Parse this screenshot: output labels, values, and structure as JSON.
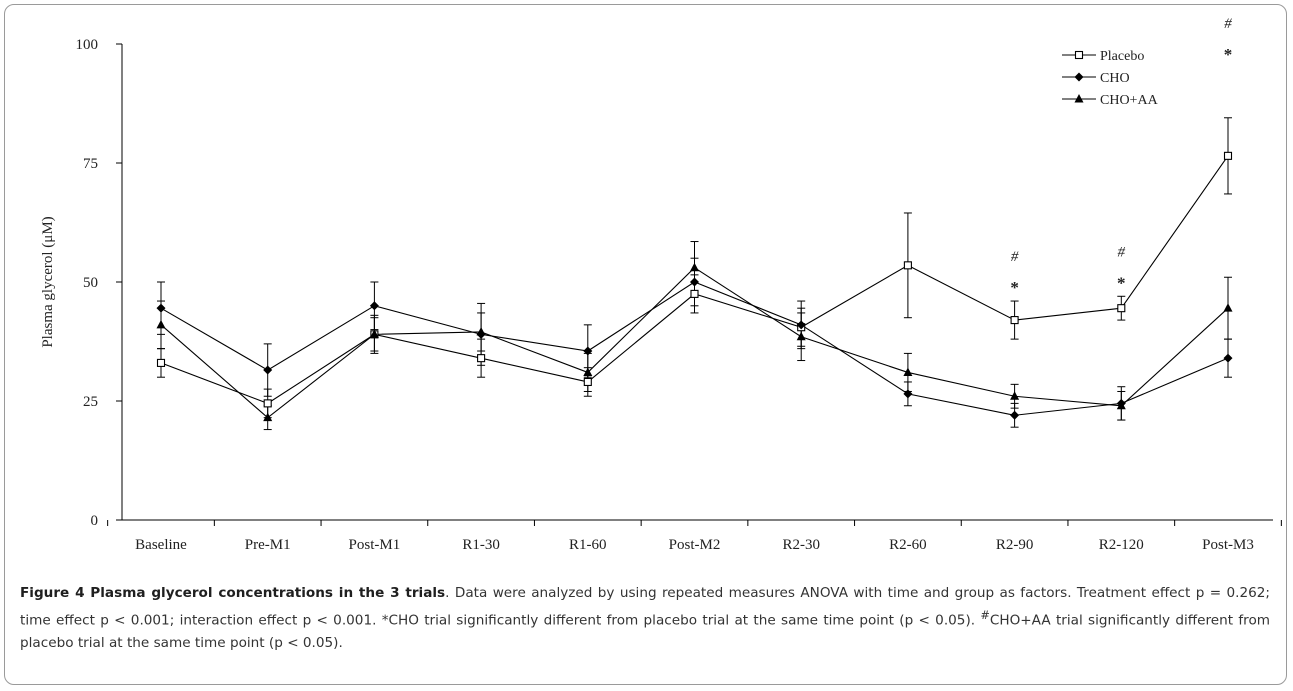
{
  "caption": {
    "title": "Figure 4 Plasma glycerol concentrations in the 3 trials",
    "text1": ". Data were analyzed by using repeated measures ANOVA with time and group as factors. Treatment effect p = 0.262; time effect p < 0.001; interaction effect p < 0.001. *CHO trial significantly different from placebo trial at the same time point (p < 0.05). ",
    "hash": "#",
    "text2": "CHO+AA trial significantly different from placebo trial at the same time point (p < 0.05)."
  },
  "chart_data": {
    "type": "line",
    "ylabel": "Plasma glycerol (μM)",
    "xlabel": "",
    "ylim": [
      0,
      100
    ],
    "yticks": [
      "0",
      "25",
      "50",
      "75",
      "100"
    ],
    "categories": [
      "Baseline",
      "Pre-M1",
      "Post-M1",
      "R1-30",
      "R1-60",
      "Post-M2",
      "R2-30",
      "R2-60",
      "R2-90",
      "R2-120",
      "Post-M3"
    ],
    "series": [
      {
        "name": "Placebo",
        "marker": "open-square",
        "values": [
          33,
          24.5,
          39,
          34,
          29,
          47.5,
          40.5,
          53.5,
          42,
          44.5,
          76.5
        ],
        "errors": [
          3,
          3,
          3.5,
          4,
          3,
          4,
          4,
          11,
          4,
          2.5,
          8
        ]
      },
      {
        "name": "CHO",
        "marker": "filled-diamond",
        "values": [
          44.5,
          31.5,
          45,
          39,
          35.5,
          50,
          41,
          26.5,
          22,
          24.5,
          34
        ],
        "errors": [
          5.5,
          5.5,
          5,
          6.5,
          5.5,
          5,
          5,
          2.5,
          2.5,
          3.5,
          4
        ]
      },
      {
        "name": "CHO+AA",
        "marker": "filled-triangle",
        "values": [
          41,
          21.5,
          39,
          39.5,
          31,
          53,
          38.5,
          31,
          26,
          24,
          44.5
        ],
        "errors": [
          5,
          2.5,
          4,
          4,
          4,
          5.5,
          5,
          4,
          2.5,
          3,
          6.5
        ]
      }
    ],
    "annotations": [
      {
        "category": "R2-90",
        "symbols": [
          "#",
          "*"
        ]
      },
      {
        "category": "R2-120",
        "symbols": [
          "#",
          "*"
        ]
      },
      {
        "category": "Post-M3",
        "symbols": [
          "#",
          "*"
        ]
      }
    ],
    "legend_position": "top-right",
    "grid": false
  }
}
